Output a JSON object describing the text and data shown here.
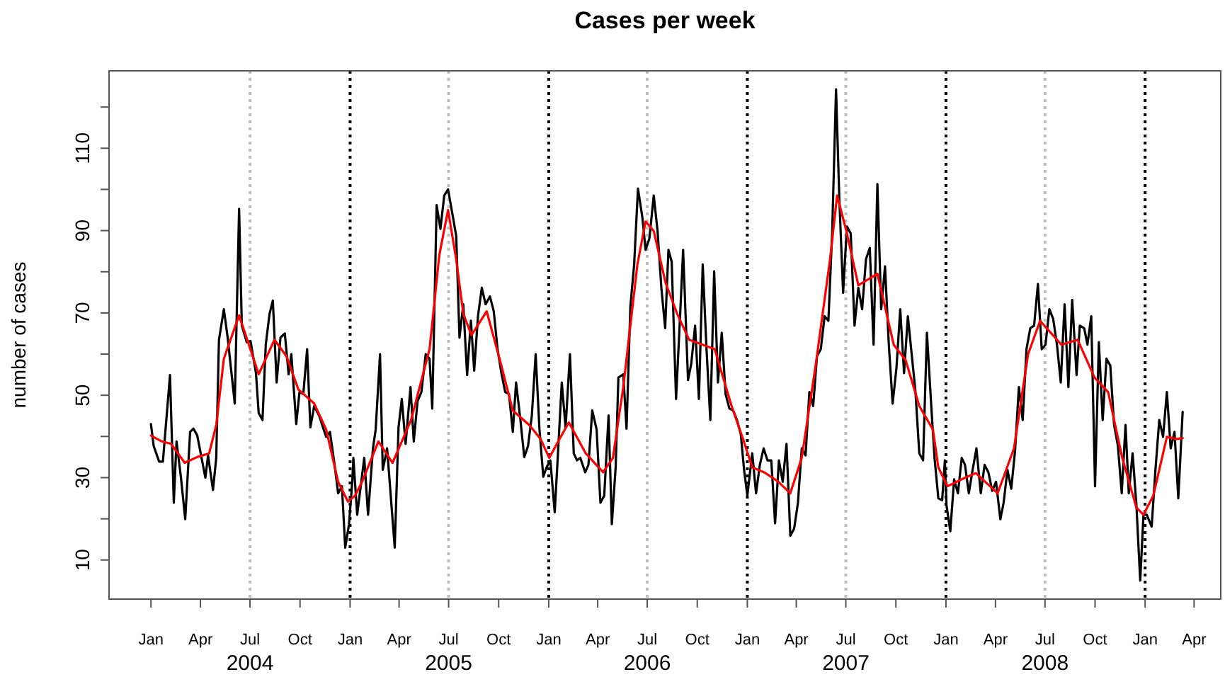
{
  "chart_data": {
    "type": "line",
    "title": "Cases per week",
    "ylabel": "number of cases",
    "xlim": [
      "2003-10-16",
      "2009-05-20"
    ],
    "ylim": [
      0.5,
      128.8
    ],
    "xticks": [
      {
        "value": "2004-01-01",
        "label": "Jan"
      },
      {
        "value": "2004-04-01",
        "label": "Apr"
      },
      {
        "value": "2004-07-01",
        "label": "Jul\n2004"
      },
      {
        "value": "2004-10-01",
        "label": "Oct"
      },
      {
        "value": "2005-01-01",
        "label": "Jan"
      },
      {
        "value": "2005-04-01",
        "label": "Apr"
      },
      {
        "value": "2005-07-01",
        "label": "Jul\n2005"
      },
      {
        "value": "2005-10-01",
        "label": "Oct"
      },
      {
        "value": "2006-01-01",
        "label": "Jan"
      },
      {
        "value": "2006-04-01",
        "label": "Apr"
      },
      {
        "value": "2006-07-01",
        "label": "Jul\n2006"
      },
      {
        "value": "2006-10-01",
        "label": "Oct"
      },
      {
        "value": "2007-01-01",
        "label": "Jan"
      },
      {
        "value": "2007-04-01",
        "label": "Apr"
      },
      {
        "value": "2007-07-01",
        "label": "Jul\n2007"
      },
      {
        "value": "2007-10-01",
        "label": "Oct"
      },
      {
        "value": "2008-01-01",
        "label": "Jan"
      },
      {
        "value": "2008-04-01",
        "label": "Apr"
      },
      {
        "value": "2008-07-01",
        "label": "Jul\n2008"
      },
      {
        "value": "2008-10-01",
        "label": "Oct"
      },
      {
        "value": "2009-01-01",
        "label": "Jan"
      },
      {
        "value": "2009-04-01",
        "label": "Apr"
      }
    ],
    "yticks": [
      10,
      {
        "value": 20,
        "label": null
      },
      30,
      {
        "value": 40,
        "label": null
      },
      50,
      {
        "value": 60,
        "label": null
      },
      70,
      {
        "value": 80,
        "label": null
      },
      90,
      {
        "value": 100,
        "label": null
      },
      110,
      {
        "value": 120,
        "label": null
      }
    ],
    "grid": false,
    "marker": "none",
    "line_style": "solid",
    "ref_lines": [
      {
        "axis": "x",
        "value": "2004-07-01",
        "label": null,
        "color": "#bebebe",
        "line_style": "dotted"
      },
      {
        "axis": "x",
        "value": "2005-07-01",
        "label": null,
        "color": "#bebebe",
        "line_style": "dotted"
      },
      {
        "axis": "x",
        "value": "2006-07-01",
        "label": null,
        "color": "#bebebe",
        "line_style": "dotted"
      },
      {
        "axis": "x",
        "value": "2007-07-01",
        "label": null,
        "color": "#bebebe",
        "line_style": "dotted"
      },
      {
        "axis": "x",
        "value": "2008-07-01",
        "label": null,
        "color": "#bebebe",
        "line_style": "dotted"
      },
      {
        "axis": "x",
        "value": "2005-01-01",
        "label": null,
        "color": "#000000",
        "line_style": "dotted"
      },
      {
        "axis": "x",
        "value": "2006-01-01",
        "label": null,
        "color": "#000000",
        "line_style": "dotted"
      },
      {
        "axis": "x",
        "value": "2007-01-01",
        "label": null,
        "color": "#000000",
        "line_style": "dotted"
      },
      {
        "axis": "x",
        "value": "2008-01-01",
        "label": null,
        "color": "#000000",
        "line_style": "dotted"
      },
      {
        "axis": "x",
        "value": "2009-01-01",
        "label": null,
        "color": "#000000",
        "line_style": "dotted"
      }
    ],
    "series": [
      {
        "color": "#000000",
        "x": [
          "2004-01-01",
          "2004-01-06",
          "2004-01-16",
          "2004-01-23",
          "2004-02-05",
          "2004-02-12",
          "2004-02-17",
          "2004-02-25",
          "2004-03-04",
          "2004-03-13",
          "2004-03-19",
          "2004-03-26",
          "2004-04-10",
          "2004-04-15",
          "2004-04-24",
          "2004-04-30",
          "2004-05-05",
          "2004-05-14",
          "2004-05-21",
          "2004-06-03",
          "2004-06-11",
          "2004-06-16",
          "2004-06-25",
          "2004-07-02",
          "2004-07-12",
          "2004-07-17",
          "2004-07-24",
          "2004-07-30",
          "2004-08-06",
          "2004-08-12",
          "2004-08-19",
          "2004-08-26",
          "2004-09-03",
          "2004-09-10",
          "2004-09-15",
          "2004-09-24",
          "2004-09-30",
          "2004-10-07",
          "2004-10-14",
          "2004-10-20",
          "2004-10-27",
          "2004-11-05",
          "2004-11-18",
          "2004-11-25",
          "2004-12-03",
          "2004-12-10",
          "2004-12-17",
          "2004-12-23",
          "2004-12-30",
          "2005-01-05",
          "2005-01-07",
          "2005-01-14",
          "2005-01-27",
          "2005-02-03",
          "2005-02-12",
          "2005-02-17",
          "2005-02-25",
          "2005-03-02",
          "2005-03-10",
          "2005-03-16",
          "2005-03-24",
          "2005-03-31",
          "2005-04-06",
          "2005-04-13",
          "2005-04-22",
          "2005-04-28",
          "2005-05-05",
          "2005-05-12",
          "2005-05-20",
          "2005-05-27",
          "2005-06-01",
          "2005-06-09",
          "2005-06-16",
          "2005-06-23",
          "2005-06-30",
          "2005-07-09",
          "2005-07-15",
          "2005-07-21",
          "2005-07-28",
          "2005-08-04",
          "2005-08-11",
          "2005-08-17",
          "2005-08-24",
          "2005-08-31",
          "2005-09-07",
          "2005-09-15",
          "2005-09-22",
          "2005-09-29",
          "2005-10-06",
          "2005-10-13",
          "2005-10-20",
          "2005-10-27",
          "2005-11-02",
          "2005-11-10",
          "2005-11-17",
          "2005-11-24",
          "2005-12-01",
          "2005-12-08",
          "2005-12-15",
          "2005-12-22",
          "2005-12-28",
          "2006-01-04",
          "2006-01-12",
          "2006-01-18",
          "2006-01-25",
          "2006-02-01",
          "2006-02-09",
          "2006-02-16",
          "2006-02-22",
          "2006-02-28",
          "2006-03-09",
          "2006-03-15",
          "2006-03-22",
          "2006-03-30",
          "2006-04-06",
          "2006-04-13",
          "2006-04-21",
          "2006-04-27",
          "2006-05-04",
          "2006-05-09",
          "2006-05-18",
          "2006-05-24",
          "2006-05-31",
          "2006-06-07",
          "2006-06-14",
          "2006-06-22",
          "2006-06-28",
          "2006-07-05",
          "2006-07-13",
          "2006-07-20",
          "2006-07-27",
          "2006-08-03",
          "2006-08-09",
          "2006-08-15",
          "2006-08-23",
          "2006-08-30",
          "2006-09-05",
          "2006-09-14",
          "2006-09-20",
          "2006-09-27",
          "2006-10-04",
          "2006-10-11",
          "2006-10-18",
          "2006-10-25",
          "2006-11-01",
          "2006-11-08",
          "2006-11-15",
          "2006-11-22",
          "2006-11-29",
          "2006-12-06",
          "2006-12-13",
          "2006-12-20",
          "2006-12-26",
          "2007-01-01",
          "2007-01-10",
          "2007-01-17",
          "2007-01-24",
          "2007-01-31",
          "2007-02-07",
          "2007-02-14",
          "2007-02-21",
          "2007-02-28",
          "2007-03-07",
          "2007-03-14",
          "2007-03-21",
          "2007-03-28",
          "2007-04-04",
          "2007-04-11",
          "2007-04-18",
          "2007-04-25",
          "2007-05-02",
          "2007-05-09",
          "2007-05-16",
          "2007-05-23",
          "2007-05-30",
          "2007-06-06",
          "2007-06-13",
          "2007-06-19",
          "2007-06-26",
          "2007-07-03",
          "2007-07-10",
          "2007-07-17",
          "2007-07-24",
          "2007-07-31",
          "2007-08-07",
          "2007-08-14",
          "2007-08-21",
          "2007-08-28",
          "2007-09-04",
          "2007-09-11",
          "2007-09-18",
          "2007-09-25",
          "2007-10-02",
          "2007-10-09",
          "2007-10-16",
          "2007-10-23",
          "2007-10-30",
          "2007-11-06",
          "2007-11-13",
          "2007-11-20",
          "2007-11-27",
          "2007-12-05",
          "2007-12-11",
          "2007-12-18",
          "2007-12-25",
          "2007-12-30",
          "2008-01-02",
          "2008-01-09",
          "2008-01-16",
          "2008-01-23",
          "2008-01-30",
          "2008-02-05",
          "2008-02-12",
          "2008-02-19",
          "2008-02-26",
          "2008-03-05",
          "2008-03-12",
          "2008-03-19",
          "2008-03-26",
          "2008-04-02",
          "2008-04-10",
          "2008-04-16",
          "2008-04-23",
          "2008-04-30",
          "2008-05-07",
          "2008-05-14",
          "2008-05-21",
          "2008-05-28",
          "2008-06-04",
          "2008-06-11",
          "2008-06-18",
          "2008-06-25",
          "2008-07-02",
          "2008-07-09",
          "2008-07-16",
          "2008-07-23",
          "2008-07-30",
          "2008-08-06",
          "2008-08-13",
          "2008-08-20",
          "2008-08-28",
          "2008-09-03",
          "2008-09-11",
          "2008-09-17",
          "2008-09-24",
          "2008-10-01",
          "2008-10-08",
          "2008-10-15",
          "2008-10-22",
          "2008-10-29",
          "2008-11-05",
          "2008-11-12",
          "2008-11-19",
          "2008-11-26",
          "2008-12-02",
          "2008-12-09",
          "2008-12-16",
          "2008-12-23",
          "2008-12-29",
          "2009-01-04",
          "2009-01-13",
          "2009-01-20",
          "2009-01-27",
          "2009-02-03",
          "2009-02-10",
          "2009-02-17",
          "2009-02-24",
          "2009-03-03",
          "2009-03-11"
        ],
        "values": [
          43,
          37.7,
          33.9,
          33.9,
          54.9,
          23.9,
          38.8,
          30.2,
          19.9,
          41.1,
          41.9,
          40.3,
          30,
          35.4,
          27,
          34.8,
          63.5,
          70.9,
          64,
          48,
          95.3,
          66.9,
          62.9,
          63.2,
          55.4,
          45.7,
          44,
          62.3,
          69.8,
          73,
          53.1,
          64,
          65,
          55.1,
          60,
          43,
          50.8,
          50.3,
          61.2,
          42.2,
          47.4,
          45.1,
          39.9,
          41.1,
          33.6,
          26.2,
          27.9,
          13,
          18.7,
          29.1,
          34.8,
          21,
          34.8,
          21,
          37.1,
          41.7,
          60,
          31.9,
          37.1,
          26.8,
          13,
          42.2,
          49.1,
          38.2,
          52,
          38.8,
          48.6,
          50.8,
          60,
          58.9,
          46.8,
          96.2,
          90.4,
          98.5,
          100,
          93.3,
          88.7,
          64,
          72.1,
          54.9,
          68.1,
          56,
          69.2,
          76.1,
          72.1,
          74,
          70.4,
          61.2,
          55.4,
          50.8,
          50.3,
          41.1,
          53.1,
          44,
          35,
          37.7,
          45.1,
          60,
          41.7,
          30.2,
          32.5,
          34.2,
          21.6,
          35.9,
          53.1,
          42.2,
          60,
          35.9,
          34.2,
          34.8,
          31.3,
          33.1,
          46.3,
          41.7,
          23.9,
          25.6,
          45.1,
          18.7,
          32.5,
          54.3,
          55.1,
          41.9,
          71.5,
          81.8,
          100.2,
          93.3,
          85.3,
          88.1,
          98.5,
          89.9,
          76.1,
          66.3,
          85.3,
          82.4,
          49.1,
          68.1,
          85.3,
          53.7,
          57.7,
          66.9,
          49.1,
          81.8,
          61.2,
          44,
          80.1,
          53.1,
          65.2,
          50.3,
          46.8,
          46.3,
          44,
          40.5,
          31.9,
          25.6,
          35.9,
          26.2,
          33.1,
          37.1,
          34.2,
          34.2,
          18.9,
          34.2,
          29,
          38.2,
          15.9,
          17.6,
          23.9,
          37.1,
          35.4,
          50.8,
          47.4,
          59.5,
          61.2,
          69.2,
          68.1,
          89.9,
          124.3,
          97.9,
          74.9,
          91,
          89.3,
          66.9,
          76.1,
          70.9,
          83,
          85.8,
          62.3,
          101.3,
          70.9,
          81.3,
          62.3,
          48,
          56.6,
          70.9,
          55.4,
          69.2,
          60,
          50.8,
          35.9,
          34.2,
          65.2,
          47.4,
          34.8,
          25,
          24.5,
          34.2,
          23.3,
          17,
          29.6,
          26.2,
          34.8,
          33.1,
          26.2,
          31.9,
          37.1,
          26.2,
          33.1,
          31.3,
          26.8,
          29,
          19.9,
          23.9,
          31.9,
          27.3,
          36.5,
          52,
          44,
          61.2,
          66.3,
          66.9,
          77,
          61.2,
          62.3,
          70.9,
          68.6,
          62.3,
          53.1,
          72.1,
          52,
          73.2,
          54.9,
          66.9,
          66.3,
          62.3,
          69.2,
          27.9,
          62.9,
          44,
          58.9,
          57.2,
          42.8,
          37.7,
          26.2,
          42.8,
          26.2,
          35.9,
          23.3,
          5,
          21,
          21,
          18.1,
          31.9,
          44,
          39.9,
          50.8,
          37.1,
          41.1,
          25,
          46
        ]
      },
      {
        "color": "#ff0000",
        "x": [
          "2004-01-01",
          "2004-01-21",
          "2004-02-07",
          "2004-03-03",
          "2004-03-26",
          "2004-04-17",
          "2004-04-30",
          "2004-05-14",
          "2004-06-11",
          "2004-06-29",
          "2004-07-17",
          "2004-08-15",
          "2004-09-06",
          "2004-09-28",
          "2004-10-27",
          "2004-11-18",
          "2004-12-10",
          "2004-12-28",
          "2005-01-10",
          "2005-01-23",
          "2005-02-22",
          "2005-03-20",
          "2005-04-23",
          "2005-05-27",
          "2005-06-14",
          "2005-06-30",
          "2005-07-15",
          "2005-07-28",
          "2005-08-12",
          "2005-09-09",
          "2005-10-05",
          "2005-10-27",
          "2005-11-26",
          "2005-12-17",
          "2006-01-02",
          "2006-01-21",
          "2006-02-07",
          "2006-03-10",
          "2006-04-11",
          "2006-04-29",
          "2006-05-18",
          "2006-06-13",
          "2006-06-28",
          "2006-07-13",
          "2006-08-04",
          "2006-08-25",
          "2006-09-16",
          "2006-11-02",
          "2006-12-03",
          "2006-12-24",
          "2007-01-10",
          "2007-02-01",
          "2007-02-27",
          "2007-03-21",
          "2007-04-11",
          "2007-05-07",
          "2007-06-02",
          "2007-06-15",
          "2007-07-02",
          "2007-07-24",
          "2007-08-28",
          "2007-09-27",
          "2007-10-19",
          "2007-11-13",
          "2007-12-08",
          "2007-12-18",
          "2008-01-04",
          "2008-01-30",
          "2008-02-25",
          "2008-04-05",
          "2008-05-05",
          "2008-05-31",
          "2008-06-22",
          "2008-07-31",
          "2008-08-30",
          "2008-09-30",
          "2008-10-25",
          "2008-11-20",
          "2008-12-16",
          "2008-12-29",
          "2009-01-16",
          "2009-02-10",
          "2009-02-28",
          "2009-03-11"
        ],
        "values": [
          40.2,
          38.8,
          38.2,
          33.6,
          35,
          35.9,
          42.8,
          58.9,
          69.4,
          62.3,
          55.1,
          63.5,
          59.5,
          51.4,
          48,
          41.7,
          29,
          24.2,
          25.6,
          29,
          38.8,
          33.6,
          44,
          61.2,
          84.1,
          95,
          83,
          69.8,
          64.6,
          70.4,
          57.7,
          46.3,
          42.8,
          39.4,
          34.8,
          39.4,
          43.4,
          35.9,
          31.3,
          34.8,
          52,
          81.8,
          92.2,
          89.9,
          77.2,
          69.8,
          63.5,
          61.2,
          47.4,
          39.4,
          32.5,
          31.3,
          29,
          26.2,
          34.8,
          57.7,
          83,
          98.5,
          89.9,
          76.7,
          79.5,
          62.3,
          58.5,
          47.4,
          41.7,
          32.5,
          27.9,
          29.6,
          31.1,
          26.2,
          37.1,
          60,
          68.1,
          62.3,
          63.5,
          54.3,
          50.8,
          34.8,
          22.7,
          21,
          25.6,
          39.9,
          39.4,
          39.6
        ]
      }
    ]
  }
}
